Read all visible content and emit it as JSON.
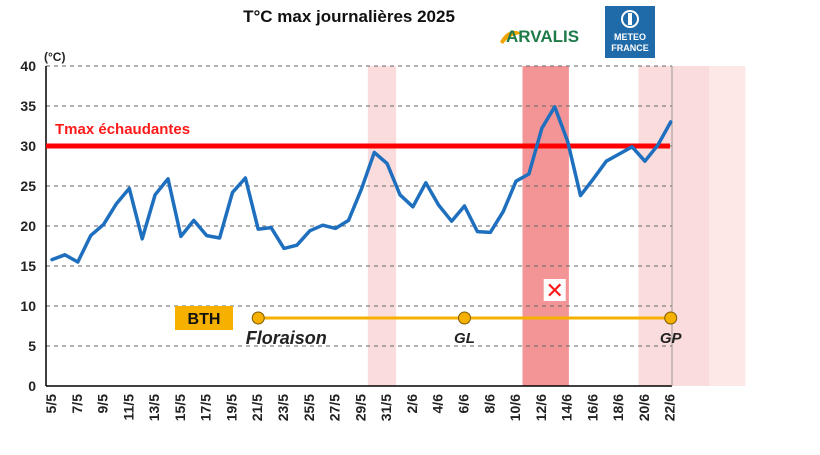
{
  "chart_data": {
    "type": "line",
    "title": "T°C max journalières 2025",
    "ylabel": "(°C)",
    "ylim": [
      0,
      40
    ],
    "yticks": [
      0,
      5,
      10,
      15,
      20,
      25,
      30,
      35,
      40
    ],
    "x_tick_labels": [
      "5/5",
      "7/5",
      "9/5",
      "11/5",
      "13/5",
      "15/5",
      "17/5",
      "19/5",
      "21/5",
      "23/5",
      "25/5",
      "27/5",
      "29/5",
      "31/5",
      "2/6",
      "4/6",
      "6/6",
      "8/6",
      "10/6",
      "12/6",
      "14/6",
      "16/6",
      "18/6",
      "20/6",
      "22/6"
    ],
    "series": [
      {
        "name": "Tmax",
        "color": "#1f6fbf",
        "values": [
          15.8,
          16.4,
          15.5,
          18.8,
          20.2,
          22.8,
          24.7,
          18.4,
          23.9,
          25.9,
          18.7,
          20.7,
          18.8,
          18.5,
          24.2,
          26.0,
          19.6,
          19.8,
          17.2,
          17.6,
          19.4,
          20.1,
          19.7,
          20.7,
          24.6,
          29.2,
          27.8,
          23.9,
          22.4,
          25.4,
          22.6,
          20.6,
          22.5,
          19.3,
          19.2,
          21.8,
          25.6,
          26.5,
          32.2,
          34.9,
          30.6,
          23.8,
          25.9,
          28.1,
          29.0,
          29.9,
          28.1,
          30.1,
          33.0
        ]
      }
    ],
    "threshold": {
      "label": "Tmax échaudantes",
      "value": 30,
      "color": "#ff0000"
    },
    "highlight_bands": [
      {
        "from": 29.5,
        "to": 31.5,
        "kind": "light"
      },
      {
        "from": 11.5,
        "to": 14.5,
        "kind": "strong",
        "month": 6
      },
      {
        "from": 20.5,
        "to": 24.5,
        "kind": "light",
        "month": 6
      }
    ],
    "stage_bar": {
      "crop": "BTH",
      "y_value": 8.5,
      "color": "#f5b000",
      "stages": [
        {
          "label": "Floraison",
          "day_index": 16
        },
        {
          "label": "GL",
          "day_index": 32
        },
        {
          "label": "GP",
          "day_index": 48
        }
      ]
    },
    "marker": {
      "label": "✕",
      "y_value": 12,
      "day_index": 39
    }
  },
  "logos": {
    "arvalis": "ARVALIS",
    "meteo_france_line1": "METEO",
    "meteo_france_line2": "FRANCE"
  }
}
